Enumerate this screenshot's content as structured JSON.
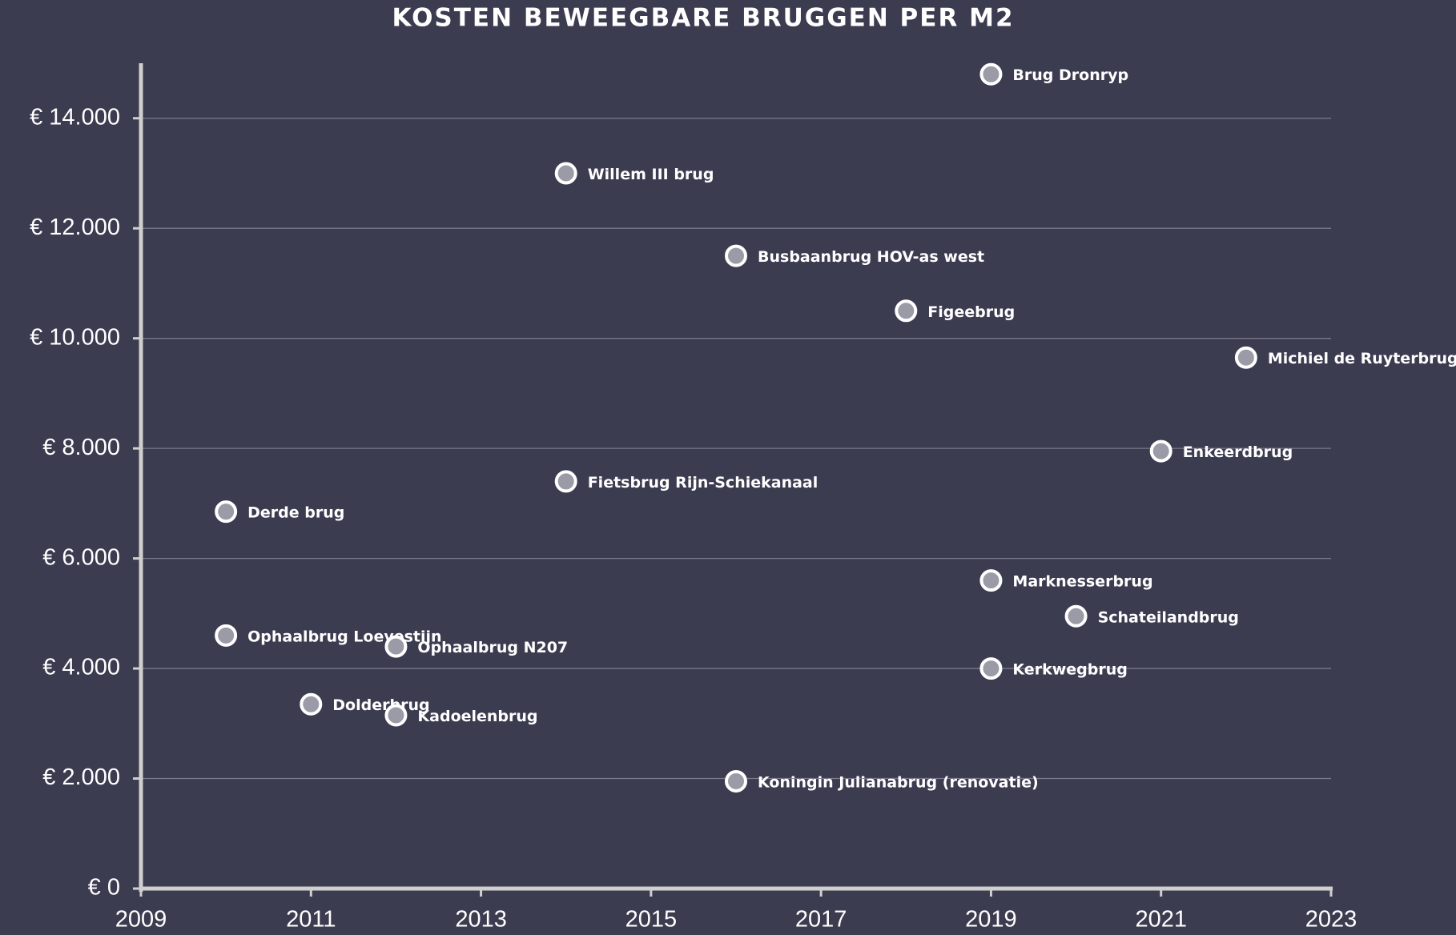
{
  "chart_data": {
    "type": "scatter",
    "title": "KOSTEN BEWEEGBARE BRUGGEN PER M2",
    "x": [
      2019,
      2014,
      2016,
      2018,
      2022,
      2021,
      2014,
      2010,
      2019,
      2020,
      2010,
      2012,
      2019,
      2011,
      2012,
      2016
    ],
    "values": [
      14800,
      13000,
      11500,
      10500,
      9650,
      7950,
      7400,
      6850,
      5600,
      4950,
      4600,
      4400,
      4000,
      3350,
      3150,
      1950
    ],
    "point_labels": [
      "Brug Dronryp",
      "Willem III brug",
      "Busbaanbrug HOV-as west",
      "Figeebrug",
      "Michiel de Ruyterbrug",
      "Enkeerdbrug",
      "Fietsbrug Rijn-Schiekanaal",
      "Derde brug",
      "Marknesserbrug",
      "Schateilandbrug",
      "Ophaalbrug Loevestijn",
      "Ophaalbrug N207",
      "Kerkwegbrug",
      "Dolderbrug",
      "Kadoelenbrug",
      "Koningin Julianabrug (renovatie)"
    ],
    "color": "#9b9ba8",
    "xlim": [
      2009,
      2023
    ],
    "xticks": [
      2009,
      2011,
      2013,
      2015,
      2017,
      2019,
      2021,
      2023
    ],
    "ylim": [
      0,
      15000
    ],
    "yticks": [
      {
        "value": 0,
        "label": "€ 0"
      },
      {
        "value": 2000,
        "label": "€ 2.000"
      },
      {
        "value": 4000,
        "label": "€ 4.000"
      },
      {
        "value": 6000,
        "label": "€ 6.000"
      },
      {
        "value": 8000,
        "label": "€ 8.000"
      },
      {
        "value": 10000,
        "label": "€ 10.000"
      },
      {
        "value": 12000,
        "label": "€ 12.000"
      },
      {
        "value": 14000,
        "label": "€ 14.000"
      }
    ],
    "grid": true
  }
}
